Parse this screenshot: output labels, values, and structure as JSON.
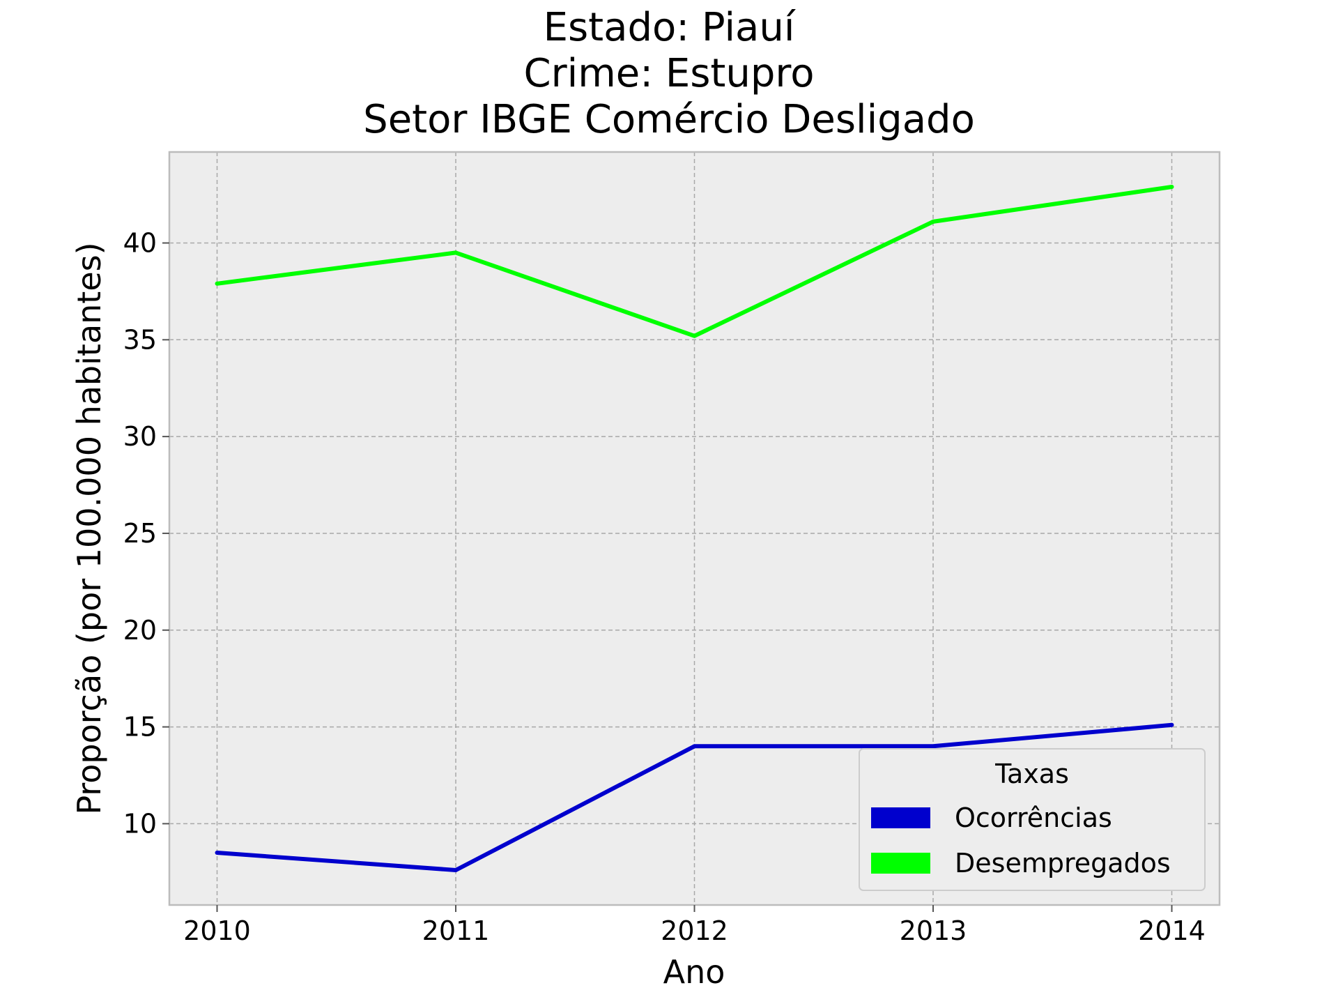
{
  "chart_data": {
    "type": "line",
    "title_lines": [
      "Estado: Piauí",
      "Crime: Estupro",
      "Setor IBGE  Comércio   Desligado"
    ],
    "xlabel": "Ano",
    "ylabel": "Proporção (por 100.000 habitantes)",
    "x": [
      2010,
      2011,
      2012,
      2013,
      2014
    ],
    "x_tick_labels": [
      "2010",
      "2011",
      "2012",
      "2013",
      "2014"
    ],
    "y_ticks": [
      10,
      15,
      20,
      25,
      30,
      35,
      40
    ],
    "y_tick_labels": [
      "10",
      "15",
      "20",
      "25",
      "30",
      "35",
      "40"
    ],
    "xlim": [
      2009.8,
      2014.2
    ],
    "ylim": [
      5.8,
      44.7
    ],
    "grid": true,
    "series": [
      {
        "name": "Ocorrências",
        "color": "#0000cd",
        "values": [
          8.5,
          7.6,
          14.0,
          14.0,
          15.1
        ]
      },
      {
        "name": "Desempregados",
        "color": "#00ff00",
        "values": [
          37.9,
          39.5,
          35.2,
          41.1,
          42.9
        ]
      }
    ],
    "legend": {
      "title": "Taxas",
      "position": "lower-right"
    }
  }
}
